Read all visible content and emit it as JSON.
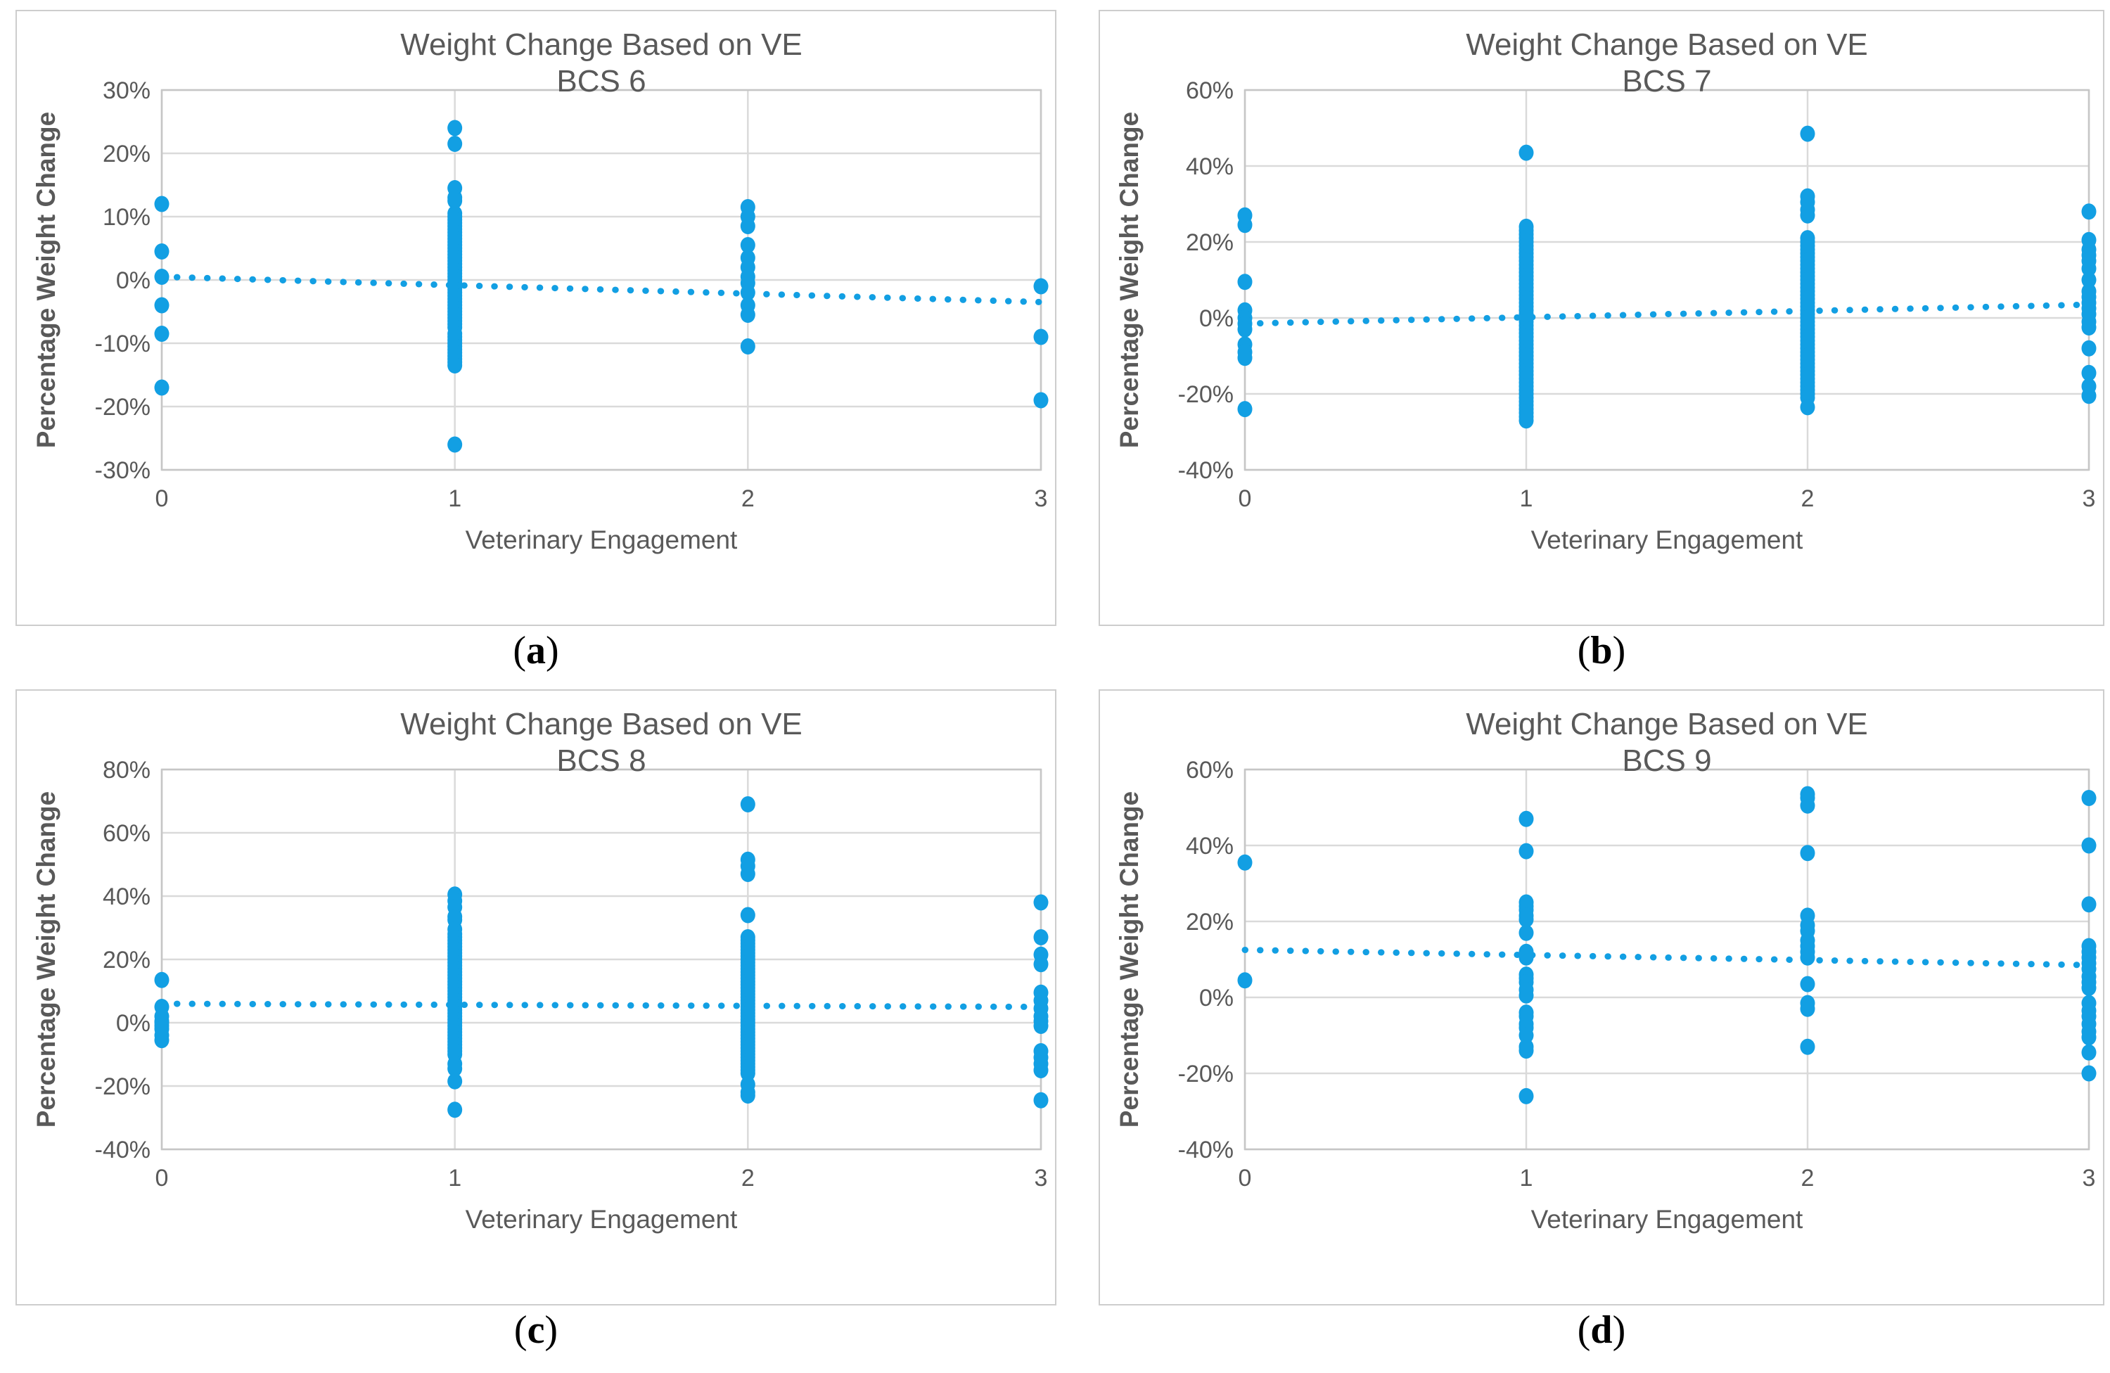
{
  "styles": {
    "marker_color": "#129FE3",
    "trend_color": "#129FE3",
    "grid_color": "#DADADA",
    "plot_border_color": "#C6C6C6",
    "chart_text_color": "#595959",
    "panel_border_color": "#CDCDCD",
    "caption_color": "#000000"
  },
  "chart_data": [
    {
      "type": "scatter",
      "title_line1": "Weight Change Based on VE",
      "title_line2": "BCS 6",
      "xlabel": "Veterinary Engagement",
      "ylabel": "Percentage Weight Change",
      "caption": "(a)",
      "ylim": [
        -30,
        30
      ],
      "ystep": 10,
      "xticks": [
        0,
        1,
        2,
        3
      ],
      "legend": "none",
      "grid": "on",
      "trendline": {
        "style": "dotted",
        "y_at_x0": 0.5,
        "y_at_x3": -3.5
      },
      "points": {
        "0": [
          12,
          4.5,
          0.5,
          -4,
          -8.5,
          -17
        ],
        "1": [
          24,
          21.5,
          14.5,
          13,
          12.5,
          10.5,
          10,
          9.5,
          9,
          8.5,
          8,
          7.5,
          7,
          6.5,
          6,
          5.5,
          5,
          4.5,
          4,
          3.5,
          3,
          2.5,
          2,
          1.5,
          1,
          0.5,
          0,
          -0.5,
          -1,
          -1.5,
          -2,
          -2.5,
          -3,
          -3.5,
          -4,
          -4.5,
          -5,
          -5.5,
          -6,
          -6.5,
          -7,
          -7.5,
          -8.5,
          -9,
          -9.5,
          -10,
          -10.5,
          -11,
          -11.5,
          -12,
          -12.5,
          -13,
          -13.5,
          -26
        ],
        "2": [
          11.5,
          10,
          8.5,
          5.5,
          3.5,
          2,
          0.5,
          -0.5,
          -2,
          -4,
          -5.5,
          -10.5
        ],
        "3": [
          -1,
          -9,
          -19
        ]
      }
    },
    {
      "type": "scatter",
      "title_line1": "Weight Change Based on VE",
      "title_line2": "BCS 7",
      "xlabel": "Veterinary Engagement",
      "ylabel": "Percentage Weight Change",
      "caption": "(b)",
      "ylim": [
        -40,
        60
      ],
      "ystep": 20,
      "xticks": [
        0,
        1,
        2,
        3
      ],
      "legend": "none",
      "grid": "on",
      "trendline": {
        "style": "dotted",
        "y_at_x0": -1.5,
        "y_at_x3": 3.5
      },
      "points": {
        "0": [
          27,
          24.5,
          9.5,
          2,
          0,
          -1.5,
          -3,
          -7,
          -9,
          -10.5,
          -24
        ],
        "1": [
          43.5,
          24,
          23,
          22,
          21,
          20,
          19,
          18,
          17,
          16,
          15,
          14,
          13,
          12,
          11,
          10,
          9,
          8,
          7,
          6,
          5,
          4,
          3,
          2,
          1,
          0,
          -1,
          -2,
          -3,
          -4,
          -5,
          -6,
          -7,
          -8,
          -9,
          -10,
          -11,
          -12,
          -13,
          -14,
          -15,
          -16,
          -17,
          -18,
          -19,
          -20,
          -21,
          -22,
          -23,
          -24,
          -25,
          -26,
          -27
        ],
        "2": [
          48.5,
          32,
          30.5,
          28.5,
          27,
          21,
          20,
          19,
          18,
          17,
          16,
          15,
          14,
          13,
          12,
          11,
          10,
          9,
          8,
          7,
          6,
          5,
          4,
          3,
          2,
          1,
          0,
          -1,
          -2,
          -3,
          -4,
          -5,
          -6,
          -7,
          -8,
          -9,
          -10,
          -11,
          -12,
          -13,
          -14,
          -15,
          -16,
          -17,
          -18,
          -19,
          -20,
          -21,
          -23.5
        ],
        "3": [
          28,
          20.5,
          18,
          16.5,
          15,
          13,
          10,
          7,
          5.5,
          4,
          2.5,
          1,
          -1,
          -2.5,
          -8,
          -14.5,
          -18,
          -20.5
        ]
      }
    },
    {
      "type": "scatter",
      "title_line1": "Weight Change Based on VE",
      "title_line2": "BCS 8",
      "xlabel": "Veterinary Engagement",
      "ylabel": "Percentage Weight Change",
      "caption": "(c)",
      "ylim": [
        -40,
        80
      ],
      "ystep": 20,
      "xticks": [
        0,
        1,
        2,
        3
      ],
      "legend": "none",
      "grid": "on",
      "trendline": {
        "style": "dotted",
        "y_at_x0": 6,
        "y_at_x3": 5
      },
      "points": {
        "0": [
          13.5,
          5,
          2,
          0.5,
          0,
          -1,
          -2,
          -4,
          -5.5
        ],
        "1": [
          40.5,
          38.5,
          36.5,
          33.5,
          32.5,
          29.5,
          28,
          27,
          26,
          25,
          24,
          23,
          22,
          21,
          20,
          19,
          18,
          17,
          16,
          15,
          14,
          13,
          12,
          11,
          10,
          9,
          8,
          7,
          6,
          5,
          4,
          3,
          2,
          1,
          0,
          -1,
          -2,
          -3,
          -4,
          -5,
          -6,
          -7,
          -8,
          -9,
          -10,
          -13,
          -14.5,
          -18.5,
          -27.5
        ],
        "2": [
          69,
          51.5,
          49.5,
          47,
          34,
          27,
          26,
          25,
          24,
          23,
          22,
          21,
          20,
          19,
          18,
          17,
          16,
          15,
          14,
          13,
          12,
          11,
          10,
          9,
          8,
          7,
          6,
          5,
          4,
          3,
          2,
          1,
          0,
          -1,
          -2,
          -3,
          -4,
          -5,
          -6,
          -7,
          -8,
          -9,
          -10,
          -11,
          -12,
          -13,
          -14,
          -15,
          -16,
          -19.5,
          -22,
          -23
        ],
        "3": [
          38,
          27,
          21.5,
          18.5,
          9.5,
          7,
          4.5,
          2,
          0.5,
          -1,
          -9,
          -11,
          -13,
          -15,
          -24.5
        ]
      }
    },
    {
      "type": "scatter",
      "title_line1": "Weight Change Based on VE",
      "title_line2": "BCS 9",
      "xlabel": "Veterinary Engagement",
      "ylabel": "Percentage Weight Change",
      "caption": "(d)",
      "ylim": [
        -40,
        60
      ],
      "ystep": 20,
      "xticks": [
        0,
        1,
        2,
        3
      ],
      "legend": "none",
      "grid": "on",
      "trendline": {
        "style": "dotted",
        "y_at_x0": 12.5,
        "y_at_x3": 8.5
      },
      "points": {
        "0": [
          35.5,
          4.5
        ],
        "1": [
          47,
          38.5,
          25,
          24,
          23,
          21.5,
          20.5,
          17,
          12,
          11,
          10.5,
          6,
          5,
          4,
          2,
          0.5,
          -4,
          -5,
          -7,
          -8,
          -10,
          -13,
          -14,
          -26
        ],
        "2": [
          53.5,
          52.5,
          50.5,
          38,
          21.5,
          19,
          17.5,
          15,
          13.5,
          12,
          10.5,
          3.5,
          -1.5,
          -3,
          -13
        ],
        "3": [
          52.5,
          40,
          24.5,
          13.5,
          12,
          10.5,
          9,
          7.5,
          5.5,
          4,
          2.5,
          -1.5,
          -3.5,
          -5,
          -7,
          -9,
          -10.5,
          -14.5,
          -20
        ]
      }
    }
  ]
}
